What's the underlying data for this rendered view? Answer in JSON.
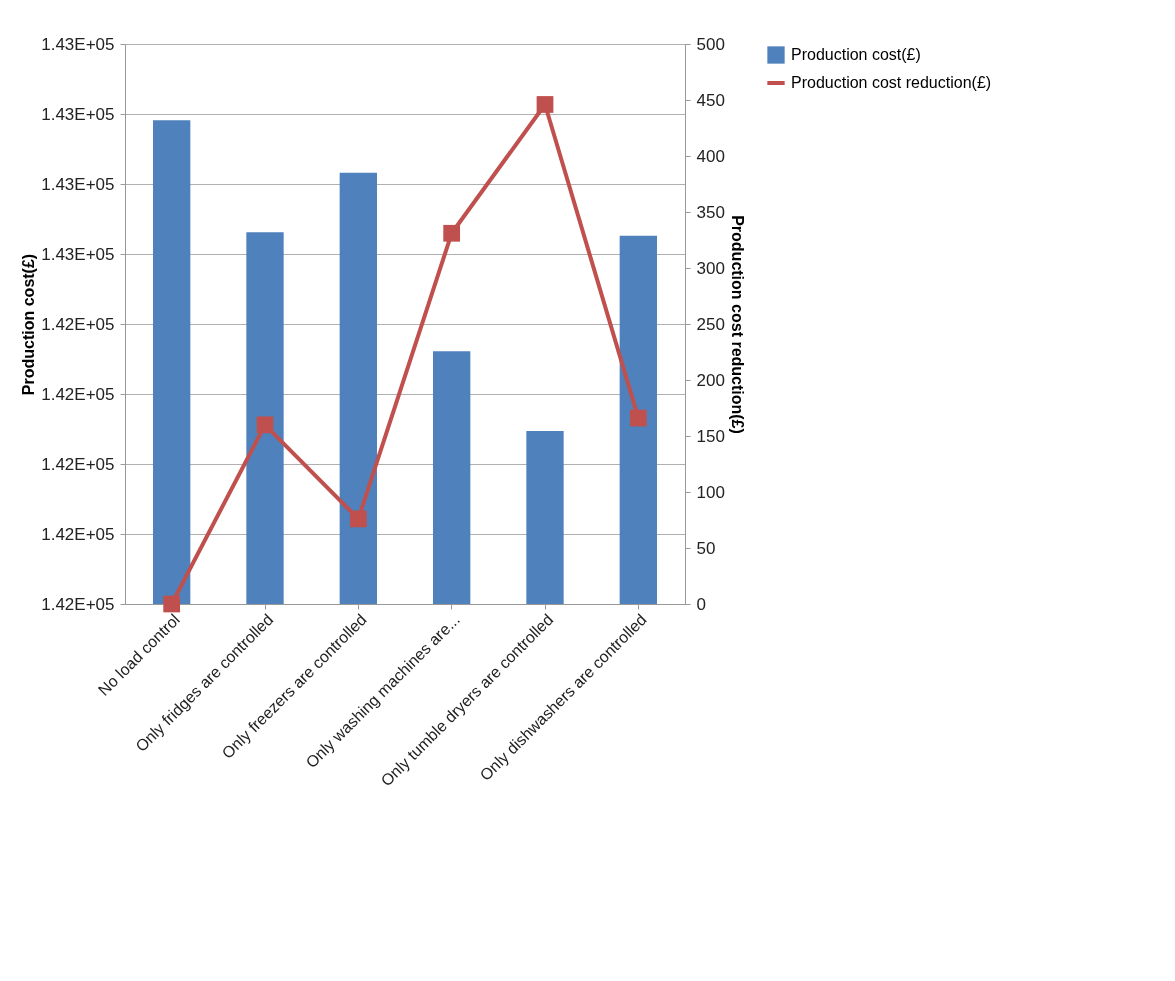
{
  "chart_data": {
    "type": "bar",
    "ylabel": "Production cost(£)",
    "y2label": "Production cost reduction(£)",
    "categories": [
      "No load control",
      "Only fridges are controlled",
      "Only freezers are controlled",
      "Only washing machines are...",
      "Only tumble dryers are controlled",
      "Only dishwashers are controlled"
    ],
    "series": [
      {
        "name": "Production cost(£)",
        "color": "#4f81bd",
        "values": [
          142691,
          142531,
          142616,
          142361,
          142247,
          142526
        ]
      },
      {
        "name": "Production cost reduction(£)",
        "color": "#c0504d",
        "type": "line",
        "axis": "y2",
        "marker": "square",
        "values": [
          0,
          160,
          76,
          331,
          446,
          166
        ]
      }
    ],
    "ylim": [
      142000,
      142800
    ],
    "yticks": [
      {
        "value": 142000,
        "label": "1.42E+05"
      },
      {
        "value": 142100,
        "label": "1.42E+05"
      },
      {
        "value": 142200,
        "label": "1.42E+05"
      },
      {
        "value": 142300,
        "label": "1.42E+05"
      },
      {
        "value": 142400,
        "label": "1.42E+05"
      },
      {
        "value": 142500,
        "label": "1.43E+05"
      },
      {
        "value": 142600,
        "label": "1.43E+05"
      },
      {
        "value": 142700,
        "label": "1.43E+05"
      },
      {
        "value": 142800,
        "label": "1.43E+05"
      }
    ],
    "y2lim": [
      0,
      500
    ],
    "y2ticks": [
      0,
      50,
      100,
      150,
      200,
      250,
      300,
      350,
      400,
      450,
      500
    ],
    "grid": "y",
    "legend": "right"
  }
}
